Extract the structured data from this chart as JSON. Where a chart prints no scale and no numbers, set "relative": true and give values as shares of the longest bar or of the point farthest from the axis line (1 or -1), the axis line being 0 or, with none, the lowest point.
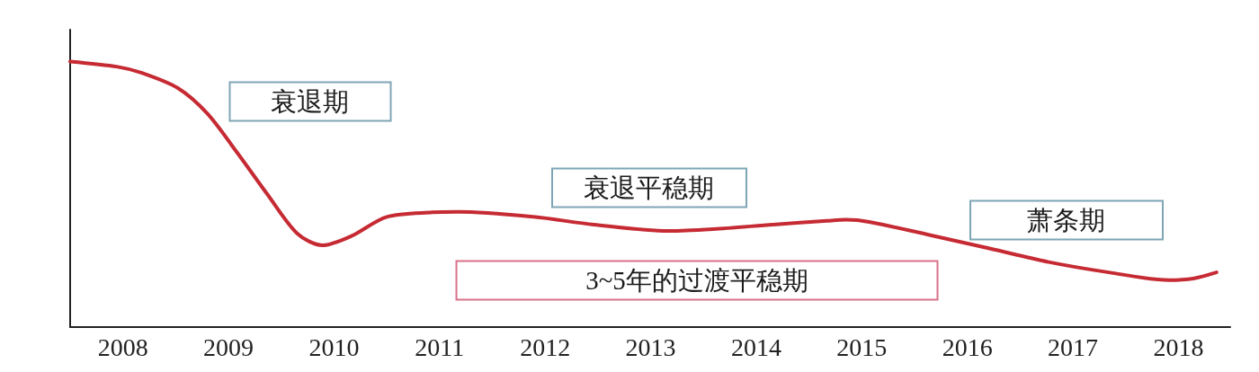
{
  "chart_data": {
    "type": "line",
    "relative": true,
    "color": "#c62a33",
    "marker": "none",
    "line_style": "solid",
    "grid": false,
    "tick_labels": "x",
    "x": [
      2007.5,
      2007.95,
      2008.18,
      2008.52,
      2008.8,
      2009.08,
      2009.37,
      2009.65,
      2009.89,
      2010.16,
      2010.5,
      2010.93,
      2011.18,
      2011.89,
      2012.46,
      2013.17,
      2013.59,
      2014.16,
      2014.67,
      2014.85,
      2015.07,
      2015.64,
      2016.21,
      2016.77,
      2017.34,
      2017.91,
      2018.14,
      2018.36
    ],
    "values": [
      1,
      0.98,
      0.957,
      0.9,
      0.804,
      0.658,
      0.499,
      0.353,
      0.308,
      0.342,
      0.415,
      0.432,
      0.434,
      0.415,
      0.386,
      0.362,
      0.369,
      0.386,
      0.4,
      0.404,
      0.396,
      0.347,
      0.296,
      0.245,
      0.206,
      0.177,
      0.183,
      0.206
    ],
    "xlim": [
      2007.5,
      2018.49
    ],
    "xticks": [
      2008,
      2009,
      2010,
      2011,
      2012,
      2013,
      2014,
      2015,
      2016,
      2017,
      2018
    ],
    "annotations": [
      "衰退期",
      "衰退平稳期",
      "萧条期",
      "3~5年的过渡平稳期"
    ]
  }
}
